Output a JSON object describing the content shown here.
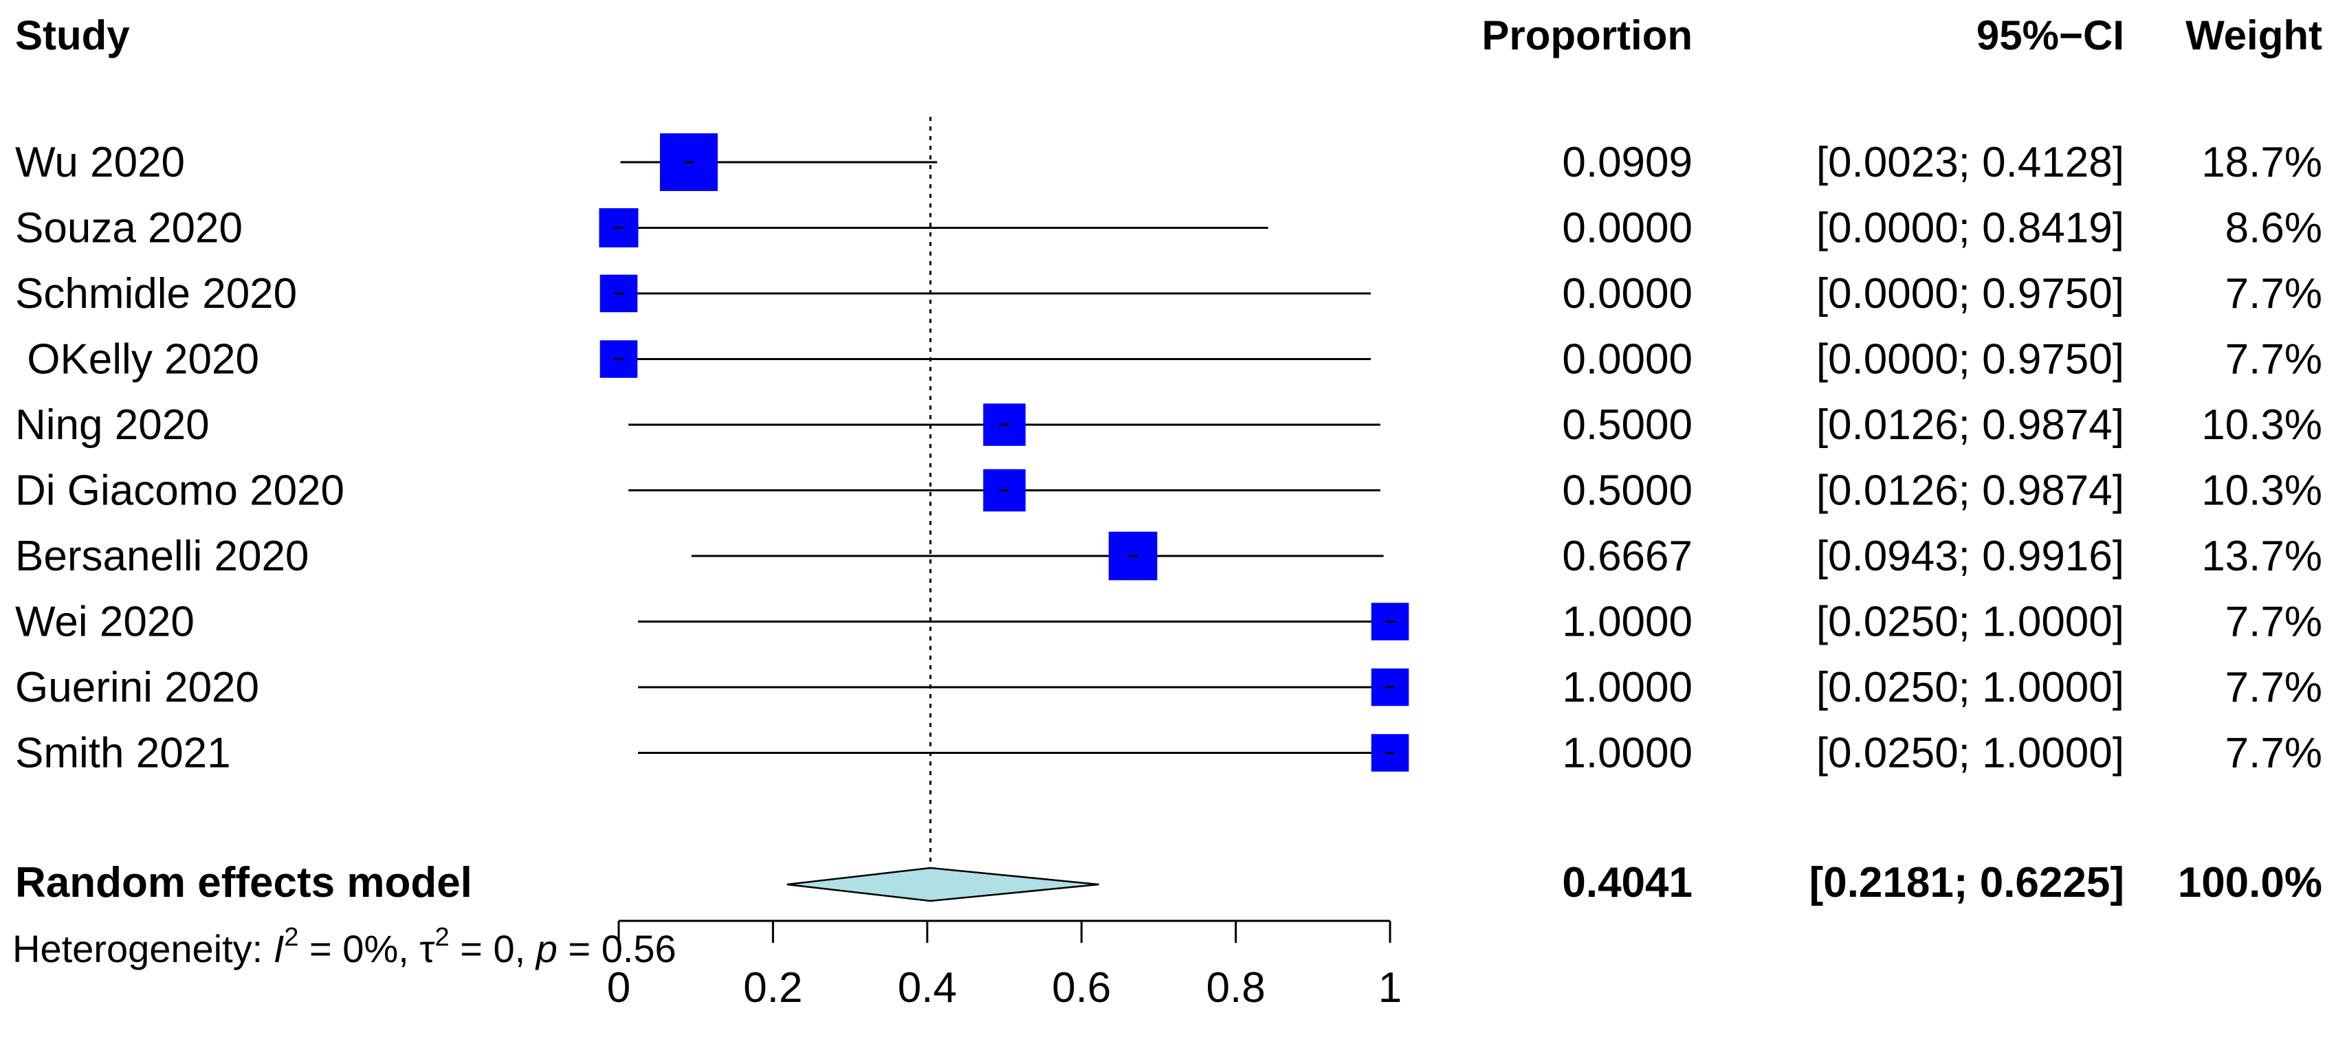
{
  "headers": {
    "study": "Study",
    "proportion": "Proportion",
    "ci": "95%−CI",
    "weight": "Weight"
  },
  "chart_data": {
    "type": "forest",
    "title": "",
    "xlabel": "",
    "xlim": [
      0,
      1
    ],
    "x_ticks": [
      "0",
      "0.2",
      "0.4",
      "0.6",
      "0.8",
      "1"
    ],
    "reference_line": 0.4041,
    "studies": [
      {
        "name": "Wu 2020",
        "proportion": 0.0909,
        "lower": 0.0023,
        "upper": 0.4128,
        "proportion_label": "0.0909",
        "ci_label": "[0.0023; 0.4128]",
        "weight": 18.7,
        "weight_label": "18.7%"
      },
      {
        "name": "Souza 2020",
        "proportion": 0.0,
        "lower": 0.0,
        "upper": 0.8419,
        "proportion_label": "0.0000",
        "ci_label": "[0.0000; 0.8419]",
        "weight": 8.6,
        "weight_label": "8.6%"
      },
      {
        "name": "Schmidle 2020",
        "proportion": 0.0,
        "lower": 0.0,
        "upper": 0.975,
        "proportion_label": "0.0000",
        "ci_label": "[0.0000; 0.9750]",
        "weight": 7.7,
        "weight_label": "7.7%"
      },
      {
        "name": " OKelly 2020",
        "proportion": 0.0,
        "lower": 0.0,
        "upper": 0.975,
        "proportion_label": "0.0000",
        "ci_label": "[0.0000; 0.9750]",
        "weight": 7.7,
        "weight_label": "7.7%"
      },
      {
        "name": "Ning 2020",
        "proportion": 0.5,
        "lower": 0.0126,
        "upper": 0.9874,
        "proportion_label": "0.5000",
        "ci_label": "[0.0126; 0.9874]",
        "weight": 10.3,
        "weight_label": "10.3%"
      },
      {
        "name": "Di Giacomo 2020",
        "proportion": 0.5,
        "lower": 0.0126,
        "upper": 0.9874,
        "proportion_label": "0.5000",
        "ci_label": "[0.0126; 0.9874]",
        "weight": 10.3,
        "weight_label": "10.3%"
      },
      {
        "name": "Bersanelli 2020",
        "proportion": 0.6667,
        "lower": 0.0943,
        "upper": 0.9916,
        "proportion_label": "0.6667",
        "ci_label": "[0.0943; 0.9916]",
        "weight": 13.7,
        "weight_label": "13.7%"
      },
      {
        "name": "Wei 2020",
        "proportion": 1.0,
        "lower": 0.025,
        "upper": 1.0,
        "proportion_label": "1.0000",
        "ci_label": "[0.0250; 1.0000]",
        "weight": 7.7,
        "weight_label": "7.7%"
      },
      {
        "name": "Guerini 2020",
        "proportion": 1.0,
        "lower": 0.025,
        "upper": 1.0,
        "proportion_label": "1.0000",
        "ci_label": "[0.0250; 1.0000]",
        "weight": 7.7,
        "weight_label": "7.7%"
      },
      {
        "name": "Smith 2021",
        "proportion": 1.0,
        "lower": 0.025,
        "upper": 1.0,
        "proportion_label": "1.0000",
        "ci_label": "[0.0250; 1.0000]",
        "weight": 7.7,
        "weight_label": "7.7%"
      }
    ],
    "summary": {
      "name": "Random effects model",
      "proportion": 0.4041,
      "lower": 0.2181,
      "upper": 0.6225,
      "proportion_label": "0.4041",
      "ci_label": "[0.2181; 0.6225]",
      "weight_label": "100.0%"
    },
    "heterogeneity": {
      "prefix": "Heterogeneity: ",
      "i2_symbol": "I",
      "i2_exp": "2",
      "i2_value": " = 0%, ",
      "tau_symbol": "τ",
      "tau_exp": "2",
      "tau_value": " = 0, ",
      "p_symbol": "p",
      "p_value": " = 0.56"
    },
    "colors": {
      "square": "#0000ff",
      "diamond": "#b0dfe5",
      "line": "#000000"
    }
  }
}
